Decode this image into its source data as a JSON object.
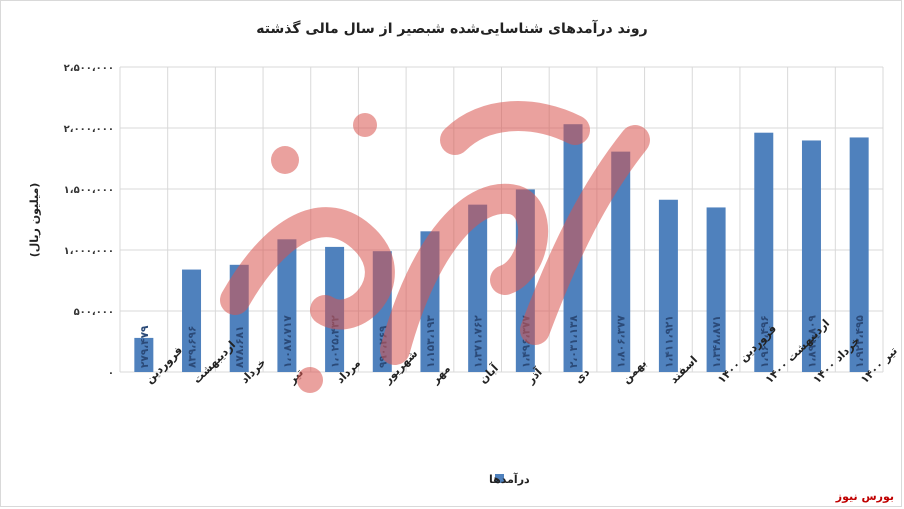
{
  "source_credit": "بورس نیوز",
  "colors": {
    "bar": "#4f81bd",
    "grid": "#d9d9d9",
    "watermark": "#d9534f",
    "source": "#c00000"
  },
  "chart_data": {
    "type": "bar",
    "title": "روند درآمدهای شناسایی‌شده شبصیر از سال مالی گذشته",
    "ylabel": "(میلیون ریال)",
    "xlabel": "",
    "ylim": [
      0,
      2500000
    ],
    "yticks": [
      0,
      500000,
      1000000,
      1500000,
      2000000,
      2500000
    ],
    "ytick_labels": [
      "۰",
      "۵۰۰،۰۰۰",
      "۱،۰۰۰،۰۰۰",
      "۱،۵۰۰،۰۰۰",
      "۲،۰۰۰،۰۰۰",
      "۲،۵۰۰،۰۰۰"
    ],
    "grid": true,
    "legend_position": "bottom",
    "categories": [
      "فروردین",
      "اردیبهشت",
      "خرداد",
      "تیر",
      "مرداد",
      "شهریور",
      "مهر",
      "آبان",
      "آذر",
      "دی",
      "بهمن",
      "اسفند",
      "فروردین ۱۴۰۰",
      "اردیبهشت ۱۴۰۰",
      "خرداد ۱۴۰۰",
      "تیر ۱۴۰۰"
    ],
    "series": [
      {
        "name": "درآمدها",
        "values": [
          279479,
          839696,
          878681,
          1087717,
          1025432,
          990269,
          1153193,
          1371762,
          1496377,
          2031138,
          1806377,
          1411921,
          1348871,
          1961496,
          1897809,
          1922495
        ],
        "value_labels": [
          "۲۷۹،۴۷۹",
          "۸۳۹،۶۹۶",
          "۸۷۸،۶۸۱",
          "۱،۰۸۷،۷۱۷",
          "۱،۰۲۵،۴۳۲",
          "۹۹۰،۲۶۹",
          "۱،۱۵۳،۱۹۳",
          "۱،۳۷۱،۷۶۲",
          "۱،۴۹۶،۳۷۷",
          "۲،۰۳۱،۱۳۸",
          "۱،۸۰۶،۳۷۷",
          "۱،۴۱۱،۹۲۱",
          "۱،۳۴۸،۸۷۱",
          "۱،۹۶۱،۴۹۶",
          "۱،۸۹۷،۸۰۹",
          "۱،۹۲۲،۴۹۵"
        ]
      }
    ]
  }
}
